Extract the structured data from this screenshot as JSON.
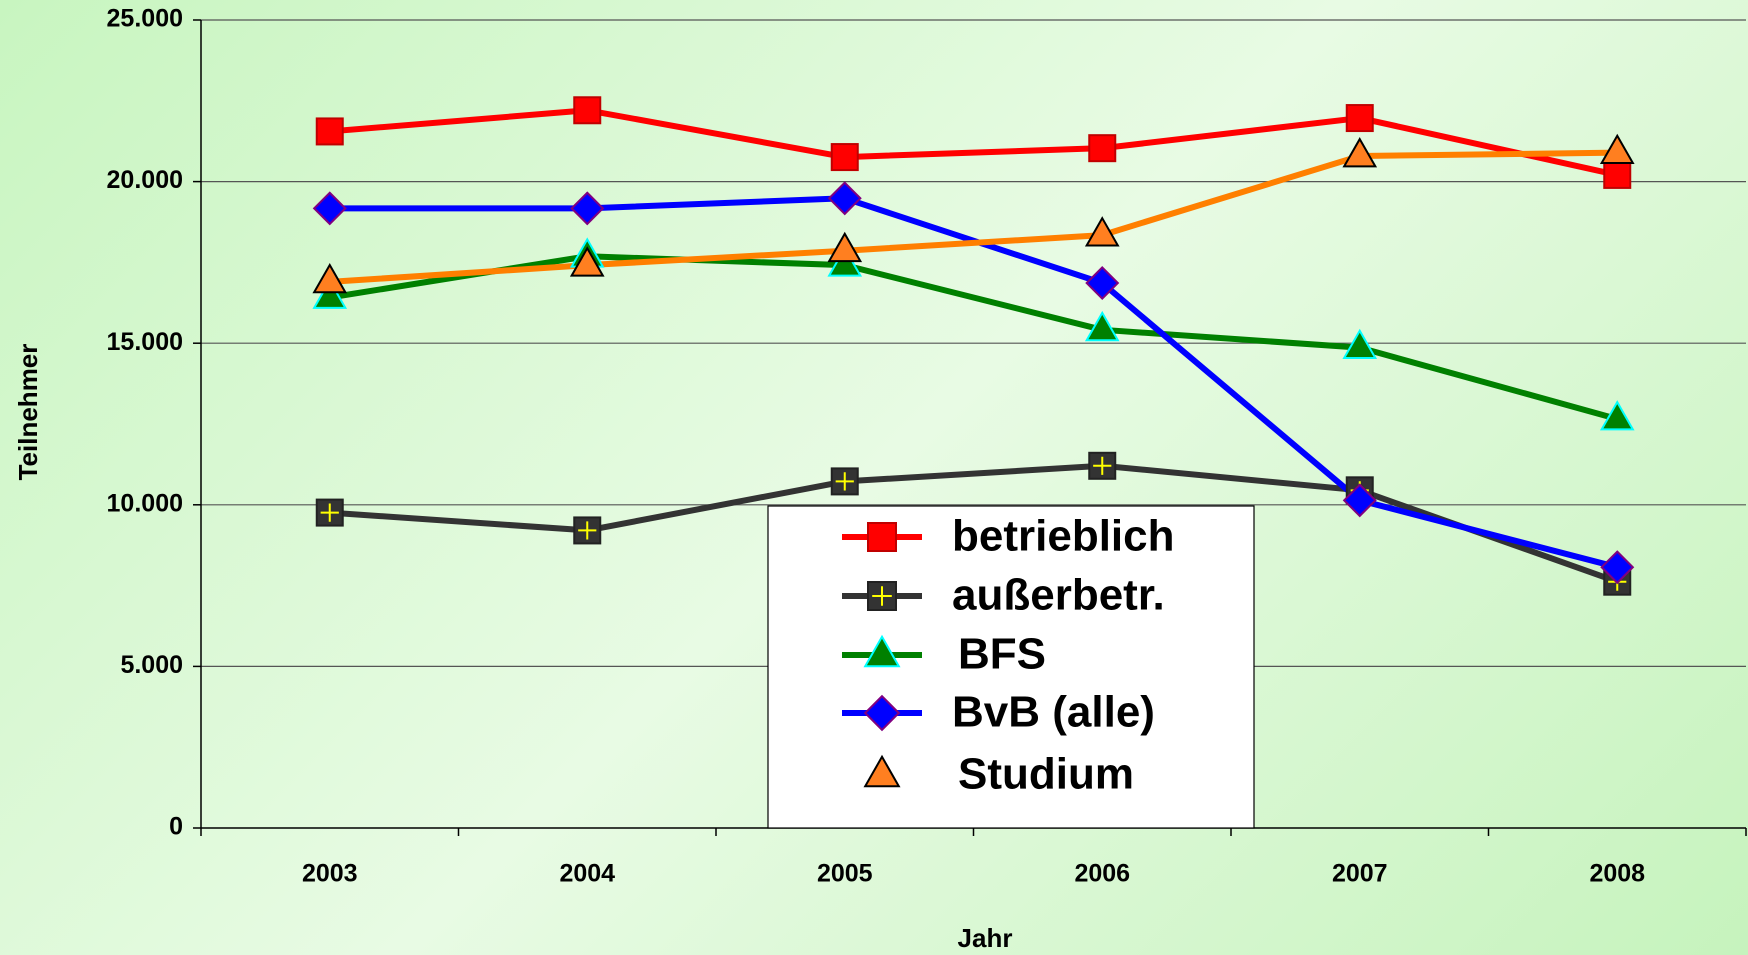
{
  "chart_data": {
    "type": "line",
    "x_label": "Jahr",
    "y_label": "Teilnehmer",
    "categories": [
      "2003",
      "2004",
      "2005",
      "2006",
      "2007",
      "2008"
    ],
    "ylim": [
      0,
      25000
    ],
    "yticks": [
      0,
      {
        "value": 5000,
        "label": "5.000"
      },
      {
        "value": 10000,
        "label": "10.000"
      },
      {
        "value": 15000,
        "label": "15.000"
      },
      {
        "value": 20000,
        "label": "20.000"
      },
      {
        "value": 25000,
        "label": "25.000"
      }
    ],
    "grid": true,
    "series": [
      {
        "name": "betrieblich",
        "color": "#ff0000",
        "marker": "square",
        "marker_color": "#ff0000",
        "marker_edge": "#c00000",
        "values": [
          21552,
          22207,
          20759,
          21034,
          21966,
          20207
        ]
      },
      {
        "name": "außerbetr.",
        "color": "#333333",
        "marker": "square-plus",
        "marker_color": "#333333",
        "marker_edge": "#ffff00",
        "values": [
          9759,
          9207,
          10724,
          11207,
          10448,
          7621
        ]
      },
      {
        "name": "BFS",
        "color": "#008000",
        "marker": "triangle",
        "marker_color": "#008000",
        "marker_edge": "#00ffff",
        "values": [
          16414,
          17690,
          17414,
          15414,
          14862,
          12655
        ]
      },
      {
        "name": "BvB (alle)",
        "color": "#0000ff",
        "marker": "diamond",
        "marker_color": "#0000ff",
        "marker_edge": "#800080",
        "values": [
          19172,
          19172,
          19483,
          16862,
          10138,
          8069
        ]
      },
      {
        "name": "Studium",
        "color": "#ff7f00",
        "marker": "triangle",
        "marker_color": "#ff7f20",
        "marker_edge": "#000000",
        "values": [
          16897,
          17414,
          17862,
          18345,
          20793,
          20897
        ]
      }
    ]
  }
}
